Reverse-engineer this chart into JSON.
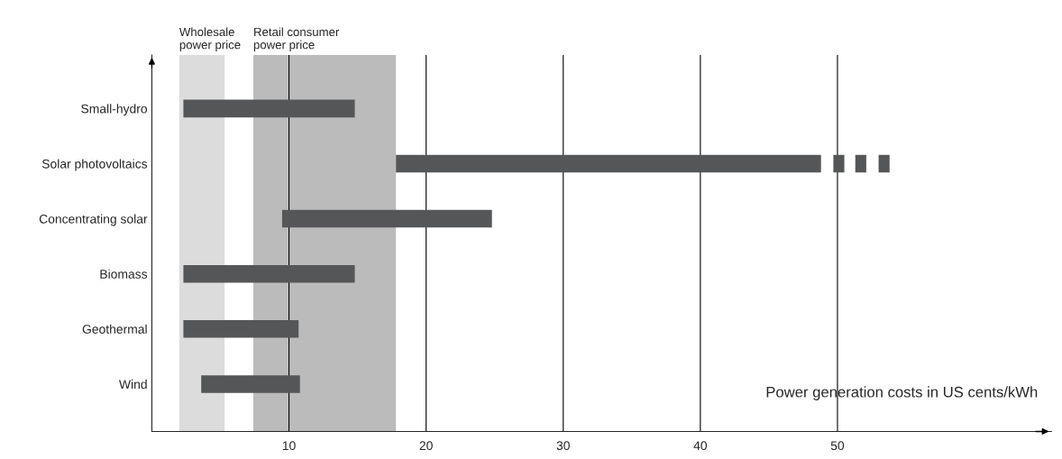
{
  "chart_data": {
    "type": "bar",
    "orientation": "horizontal",
    "categories": [
      "Small-hydro",
      "Solar photovoltaics",
      "Concentrating solar",
      "Biomass",
      "Geothermal",
      "Wind"
    ],
    "series": [
      {
        "color": "#555657",
        "base": [
          2.3,
          17.8,
          9.5,
          2.3,
          2.3,
          3.6
        ],
        "values": [
          12.5,
          31.0,
          15.3,
          12.5,
          8.4,
          7.2
        ]
      },
      {
        "color": "#555657",
        "base": [
          null,
          49.7,
          null,
          null,
          null,
          null
        ],
        "values": [
          null,
          0.8,
          null,
          null,
          null,
          null
        ]
      },
      {
        "color": "#555657",
        "base": [
          null,
          51.3,
          null,
          null,
          null,
          null
        ],
        "values": [
          null,
          0.8,
          null,
          null,
          null,
          null
        ]
      },
      {
        "color": "#555657",
        "base": [
          null,
          53.0,
          null,
          null,
          null,
          null
        ],
        "values": [
          null,
          0.8,
          null,
          null,
          null,
          null
        ]
      }
    ],
    "bands": [
      {
        "axis": "x",
        "from": 2.0,
        "to": 5.3,
        "label": "Wholesale\npower price",
        "color": "#dcdcdd"
      },
      {
        "axis": "x",
        "from": 7.4,
        "to": 17.8,
        "label": "Retail consumer\npower price",
        "color": "#bbbbbc"
      }
    ],
    "xlim": [
      0,
      65.6
    ],
    "xticks": [
      10,
      20,
      30,
      40,
      50
    ],
    "grid": "x",
    "xlabel": "Power generation costs in US cents/kWh"
  }
}
